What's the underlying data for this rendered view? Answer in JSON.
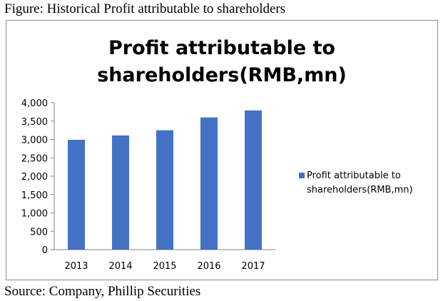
{
  "figure": {
    "caption": "Figure: Historical Profit attributable to shareholders",
    "source": "Source: Company, Phillip Securities"
  },
  "colors": {
    "bar": "#4472c4",
    "axis": "#868686",
    "frame": "#8c8c8c"
  },
  "chart_data": {
    "type": "bar",
    "title_lines": [
      "Profit attributable to",
      "shareholders(RMB,mn)"
    ],
    "categories": [
      "2013",
      "2014",
      "2015",
      "2016",
      "2017"
    ],
    "series": [
      {
        "name_lines": [
          "Profit attributable to",
          "shareholders(RMB,mn)"
        ],
        "values": [
          2990,
          3110,
          3250,
          3600,
          3790
        ]
      }
    ],
    "yticks": [
      "0",
      "500",
      "1,000",
      "1,500",
      "2,000",
      "2,500",
      "3,000",
      "3,500",
      "4,000"
    ],
    "ylim": [
      0,
      4000
    ],
    "grid": false,
    "legend": "right"
  }
}
